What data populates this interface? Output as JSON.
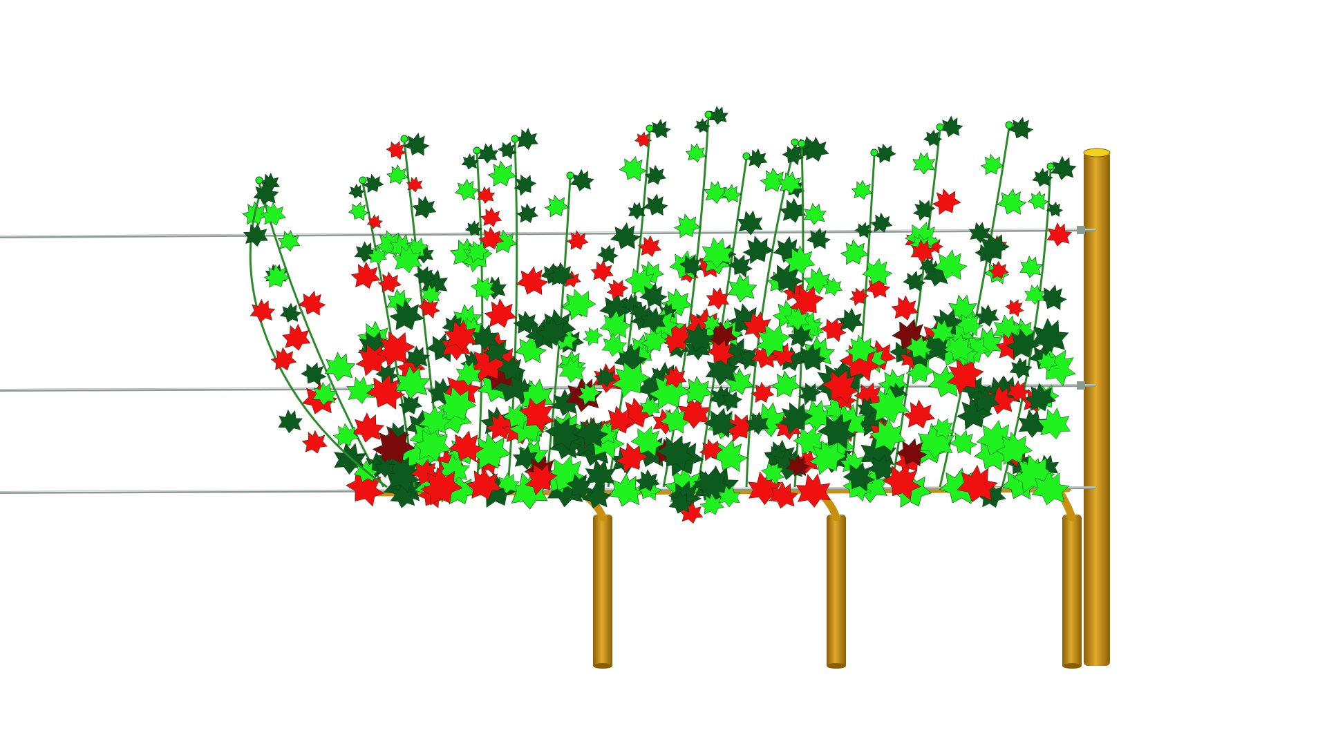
{
  "scene": {
    "subject": "vine-trellis-3d-render",
    "colors": {
      "background": "#ffffff",
      "wire": "#8c9a94",
      "wood": "#c8900c",
      "wood_dark": "#8a5e06",
      "wood_light": "#e0aa2a",
      "post_top": "#f2d21a",
      "leaf_light": "#1ff21f",
      "leaf_dark": "#0d5a1e",
      "leaf_red": "#f01010",
      "leaf_dark_red": "#7a0a0a",
      "stem": "#2a8a2a"
    },
    "counts": {
      "wires": 3,
      "vine_trunks": 3,
      "end_posts": 1,
      "shoots": 15
    }
  }
}
